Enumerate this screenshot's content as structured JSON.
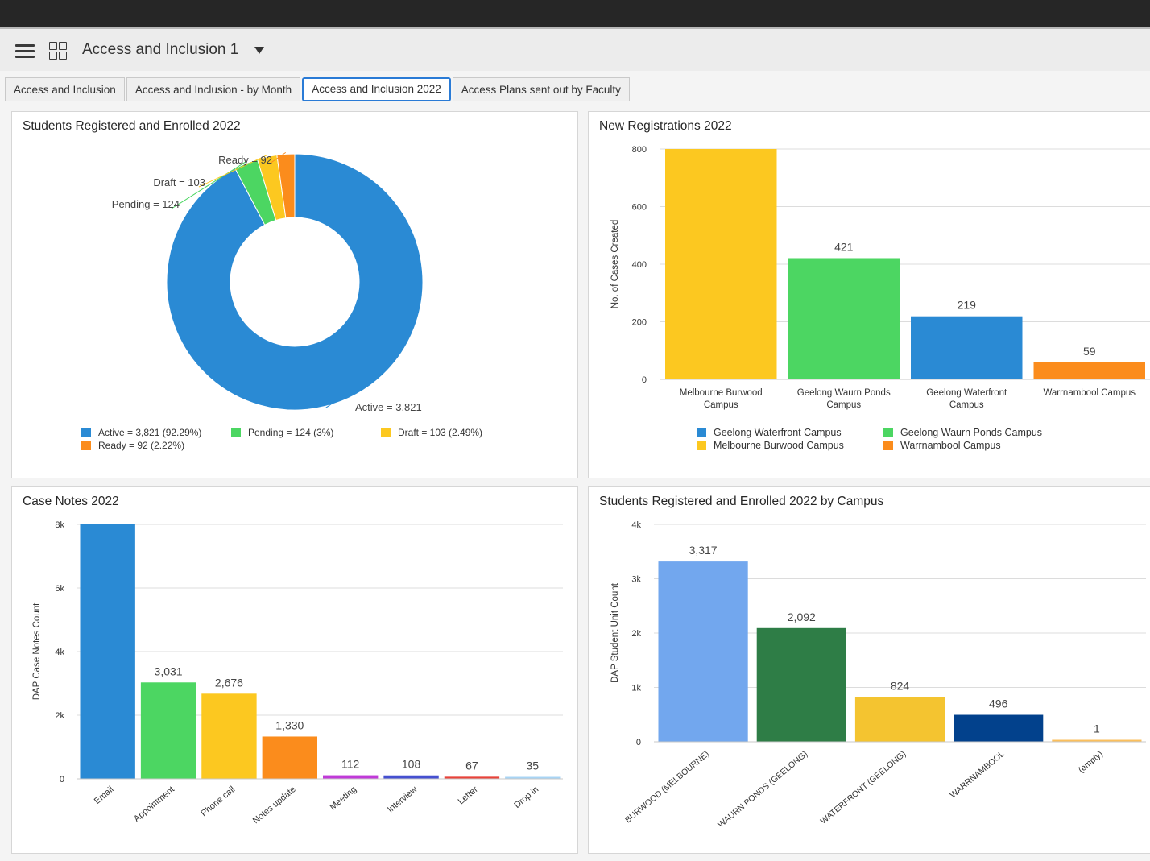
{
  "header": {
    "title": "Access and Inclusion 1",
    "menu_icon": "hamburger-menu-icon",
    "dashboard_icon": "dashboard-grid-icon",
    "dropdown_icon": "caret-down-icon"
  },
  "tabs": [
    {
      "label": "Access and Inclusion",
      "active": false
    },
    {
      "label": "Access and Inclusion - by Month",
      "active": false
    },
    {
      "label": "Access and Inclusion 2022",
      "active": true
    },
    {
      "label": "Access Plans sent out by Faculty",
      "active": false
    }
  ],
  "panels": {
    "donut": {
      "title": "Students Registered and Enrolled 2022"
    },
    "new_reg": {
      "title": "New Registrations 2022"
    },
    "case_notes": {
      "title": "Case Notes 2022"
    },
    "by_campus": {
      "title": "Students Registered and Enrolled 2022 by Campus"
    }
  },
  "chart_data": [
    {
      "type": "pie",
      "title": "Students Registered and Enrolled 2022",
      "slices": [
        {
          "label": "Active",
          "value": 3821,
          "callout": "Active = 3,821",
          "legend": "Active = 3,821 (92.29%)",
          "color": "#2a8ad4"
        },
        {
          "label": "Pending",
          "value": 124,
          "callout": "Pending = 124",
          "legend": "Pending = 124 (3%)",
          "color": "#4cd662"
        },
        {
          "label": "Draft",
          "value": 103,
          "callout": "Draft = 103",
          "legend": "Draft = 103 (2.49%)",
          "color": "#fcc820"
        },
        {
          "label": "Ready",
          "value": 92,
          "callout": "Ready = 92",
          "legend": "Ready = 92 (2.22%)",
          "color": "#fb8c1c"
        }
      ]
    },
    {
      "type": "bar",
      "title": "New Registrations 2022",
      "ylabel": "No. of Cases Created",
      "ylim": [
        0,
        800
      ],
      "yticks": [
        "0",
        "200",
        "400",
        "600",
        "800"
      ],
      "categories": [
        [
          "Melbourne Burwood",
          "Campus"
        ],
        [
          "Geelong Waurn Ponds",
          "Campus"
        ],
        [
          "Geelong Waterfront",
          "Campus"
        ],
        [
          "Warrnambool Campus"
        ]
      ],
      "values": [
        800,
        421,
        219,
        59
      ],
      "data_labels": [
        "",
        "421",
        "219",
        "59"
      ],
      "colors": [
        "#fcc820",
        "#4cd662",
        "#2a8ad4",
        "#fb8c1c"
      ],
      "legend": [
        {
          "label": "Geelong Waterfront Campus",
          "color": "#2a8ad4"
        },
        {
          "label": "Geelong Waurn Ponds Campus",
          "color": "#4cd662"
        },
        {
          "label": "Melbourne Burwood Campus",
          "color": "#fcc820"
        },
        {
          "label": "Warrnambool Campus",
          "color": "#fb8c1c"
        }
      ]
    },
    {
      "type": "bar",
      "title": "Case Notes 2022",
      "ylabel": "DAP Case Notes Count",
      "ylim": [
        0,
        8000
      ],
      "yticks": [
        "0",
        "2k",
        "4k",
        "6k",
        "8k"
      ],
      "categories": [
        "Email",
        "Appointment",
        "Phone call",
        "Notes update",
        "Meeting",
        "Interview",
        "Letter",
        "Drop in"
      ],
      "values": [
        8000,
        3031,
        2676,
        1330,
        112,
        108,
        67,
        35
      ],
      "data_labels": [
        "",
        "3,031",
        "2,676",
        "1,330",
        "112",
        "108",
        "67",
        "35"
      ],
      "colors": [
        "#2a8ad4",
        "#4cd662",
        "#fcc820",
        "#fb8c1c",
        "#c03ad8",
        "#4550d0",
        "#e8433a",
        "#a8d4f4"
      ]
    },
    {
      "type": "bar",
      "title": "Students Registered and Enrolled 2022 by Campus",
      "ylabel": "DAP Student Unit Count",
      "ylim": [
        0,
        4000
      ],
      "yticks": [
        "0",
        "1k",
        "2k",
        "3k",
        "4k"
      ],
      "categories": [
        "BURWOOD (MELBOURNE)",
        "WAURN PONDS (GEELONG)",
        "WATERFRONT (GEELONG)",
        "WARRNAMBOOL",
        "(empty)"
      ],
      "values": [
        3317,
        2092,
        824,
        496,
        1
      ],
      "data_labels": [
        "3,317",
        "2,092",
        "824",
        "496",
        "1"
      ],
      "colors": [
        "#72a7ee",
        "#2e7d46",
        "#f4c430",
        "#02418c",
        "#fbbf5c"
      ]
    }
  ]
}
